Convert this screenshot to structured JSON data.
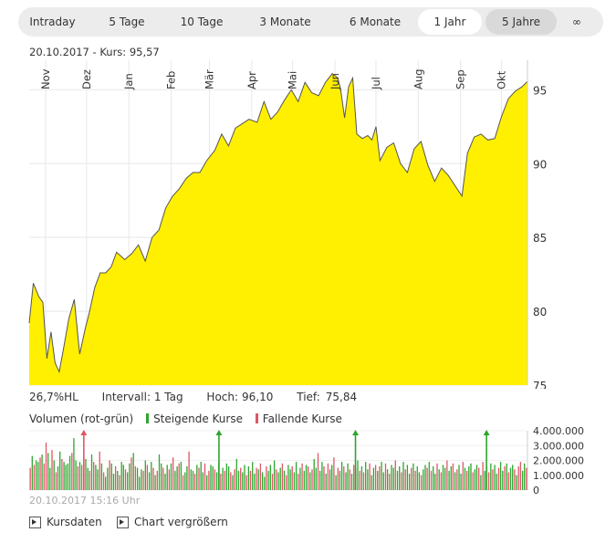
{
  "tabs": [
    {
      "label": "Intraday",
      "state": "normal"
    },
    {
      "label": "5 Tage",
      "state": "normal"
    },
    {
      "label": "10 Tage",
      "state": "normal"
    },
    {
      "label": "3 Monate",
      "state": "normal"
    },
    {
      "label": "6 Monate",
      "state": "normal"
    },
    {
      "label": "1 Jahr",
      "state": "selected"
    },
    {
      "label": "5 Jahre",
      "state": "hover"
    },
    {
      "label": "∞",
      "state": "normal"
    }
  ],
  "header": {
    "date": "20.10.2017",
    "kurs": "- Kurs: 95,57"
  },
  "stats": {
    "hl": "26,7%HL",
    "intervall": "Intervall: 1 Tag",
    "hoch_label": "Hoch:",
    "hoch_value": "96,10",
    "tief_label": "Tief:",
    "tief_value": "75,84"
  },
  "volume_legend": {
    "title": "Volumen (rot-grün)",
    "rising": "Steigende Kurse",
    "falling": "Fallende Kurse"
  },
  "timestamp": "20.10.2017 15:16 Uhr",
  "footer": {
    "kursdaten": "Kursdaten",
    "chart": "Chart vergrößern"
  },
  "colors": {
    "area_fill": "#ffef00",
    "line": "#555555",
    "rising": "#2ea52e",
    "falling": "#e05565",
    "grid": "#e8e8e8"
  },
  "chart_data": [
    {
      "type": "area",
      "x_axis_type": "date",
      "x_range": [
        "2016-10-20",
        "2017-10-20"
      ],
      "ylim": [
        75,
        97
      ],
      "y_ticks": [
        75,
        80,
        85,
        90,
        95
      ],
      "x_tick_labels": [
        "Nov",
        "Dez",
        "Jan",
        "Feb",
        "Mär",
        "Apr",
        "Mai",
        "Jun",
        "Jul",
        "Aug",
        "Sep",
        "Okt"
      ],
      "x_tick_dates": [
        "2016-11-01",
        "2016-12-01",
        "2017-01-01",
        "2017-02-01",
        "2017-03-01",
        "2017-04-01",
        "2017-05-01",
        "2017-06-01",
        "2017-07-01",
        "2017-08-01",
        "2017-09-01",
        "2017-10-01"
      ],
      "grid": true,
      "x": [
        "2016-10-20",
        "2016-10-23",
        "2016-10-27",
        "2016-10-30",
        "2016-11-02",
        "2016-11-05",
        "2016-11-08",
        "2016-11-11",
        "2016-11-14",
        "2016-11-18",
        "2016-11-22",
        "2016-11-26",
        "2016-11-30",
        "2016-12-03",
        "2016-12-07",
        "2016-12-11",
        "2016-12-15",
        "2016-12-19",
        "2016-12-23",
        "2016-12-29",
        "2017-01-03",
        "2017-01-08",
        "2017-01-13",
        "2017-01-18",
        "2017-01-23",
        "2017-01-28",
        "2017-02-02",
        "2017-02-07",
        "2017-02-12",
        "2017-02-17",
        "2017-02-22",
        "2017-02-27",
        "2017-03-05",
        "2017-03-10",
        "2017-03-15",
        "2017-03-20",
        "2017-03-25",
        "2017-03-30",
        "2017-04-05",
        "2017-04-10",
        "2017-04-15",
        "2017-04-20",
        "2017-04-25",
        "2017-04-30",
        "2017-05-05",
        "2017-05-10",
        "2017-05-15",
        "2017-05-20",
        "2017-05-25",
        "2017-05-30",
        "2017-06-03",
        "2017-06-05",
        "2017-06-08",
        "2017-06-11",
        "2017-06-14",
        "2017-06-17",
        "2017-06-21",
        "2017-06-25",
        "2017-06-28",
        "2017-07-01",
        "2017-07-04",
        "2017-07-09",
        "2017-07-14",
        "2017-07-19",
        "2017-07-24",
        "2017-07-29",
        "2017-08-03",
        "2017-08-08",
        "2017-08-13",
        "2017-08-18",
        "2017-08-23",
        "2017-08-28",
        "2017-09-02",
        "2017-09-06",
        "2017-09-11",
        "2017-09-16",
        "2017-09-21",
        "2017-09-26",
        "2017-10-01",
        "2017-10-06",
        "2017-10-11",
        "2017-10-16",
        "2017-10-20"
      ],
      "y": [
        79.2,
        81.9,
        81.0,
        80.6,
        76.8,
        78.6,
        76.5,
        75.9,
        77.4,
        79.5,
        80.8,
        77.1,
        78.8,
        79.9,
        81.6,
        82.6,
        82.6,
        83.0,
        84.0,
        83.5,
        83.9,
        84.5,
        83.4,
        85.0,
        85.5,
        87.0,
        87.8,
        88.3,
        89.0,
        89.4,
        89.4,
        90.2,
        90.9,
        92.0,
        91.2,
        92.4,
        92.7,
        93.0,
        92.8,
        94.2,
        93.0,
        93.5,
        94.3,
        95.0,
        94.2,
        95.5,
        94.8,
        94.6,
        95.5,
        96.1,
        95.8,
        95.1,
        93.1,
        95.2,
        95.8,
        92.0,
        91.7,
        91.9,
        91.6,
        92.5,
        90.2,
        91.1,
        91.4,
        90.0,
        89.4,
        91.0,
        91.5,
        89.9,
        88.8,
        89.7,
        89.2,
        88.5,
        87.8,
        90.7,
        91.8,
        92.0,
        91.6,
        91.7,
        93.2,
        94.4,
        94.9,
        95.2,
        95.57
      ]
    },
    {
      "type": "bar",
      "x_axis_type": "date",
      "ylim": [
        0,
        4000000
      ],
      "y_ticks": [
        0,
        1000000,
        2000000,
        3000000,
        4000000
      ],
      "y_tick_labels": [
        "0",
        "1.000.000",
        "2.000.000",
        "3.000.000",
        "4.000.000"
      ],
      "series": [
        {
          "name": "Steigende Kurse",
          "color": "#2ea52e"
        },
        {
          "name": "Fallende Kurse",
          "color": "#e05565"
        }
      ],
      "spikes_offscale": [
        {
          "x": "2016-11-29",
          "direction": "Fallende Kurse"
        },
        {
          "x": "2017-03-08",
          "direction": "Steigende Kurse"
        },
        {
          "x": "2017-06-16",
          "direction": "Steigende Kurse"
        },
        {
          "x": "2017-09-20",
          "direction": "Steigende Kurse"
        }
      ],
      "values": [
        1500000,
        2300000,
        1700000,
        2000000,
        1900000,
        2200000,
        2400000,
        1800000,
        3200000,
        2500000,
        1500000,
        2700000,
        2000000,
        1200000,
        1600000,
        2600000,
        2100000,
        1900000,
        1700000,
        1800000,
        2300000,
        2500000,
        3500000,
        2000000,
        1600000,
        1900000,
        1700000,
        2200000,
        2100000,
        1500000,
        1300000,
        2400000,
        1900000,
        1700000,
        1400000,
        2600000,
        1800000,
        1200000,
        900000,
        1500000,
        2000000,
        1800000,
        1100000,
        1600000,
        1300000,
        1000000,
        1900000,
        1700000,
        1400000,
        1200000,
        1800000,
        2200000,
        2500000,
        1600000,
        1500000,
        900000,
        1400000,
        1300000,
        2000000,
        1700000,
        1200000,
        1900000,
        1500000,
        1000000,
        1300000,
        2400000,
        1800000,
        1500000,
        1100000,
        1700000,
        1400000,
        1800000,
        2200000,
        1300000,
        1600000,
        1800000,
        1900000,
        1000000,
        1200000,
        1600000,
        2600000,
        1400000,
        1300000,
        1100000,
        1700000,
        1500000,
        1900000,
        1200000,
        1800000,
        1000000,
        1300000,
        1700000,
        1600000,
        1400000,
        1200000,
        1900000,
        1100000,
        1500000,
        1300000,
        1800000,
        1600000,
        1200000,
        1000000,
        1400000,
        2100000,
        1300000,
        1500000,
        1200000,
        1700000,
        1000000,
        1600000,
        1300000,
        1900000,
        1100000,
        1500000,
        1400000,
        1800000,
        1200000,
        900000,
        1600000,
        1300000,
        1700000,
        1100000,
        2000000,
        1400000,
        1200000,
        1500000,
        1800000,
        1300000,
        1000000,
        1700000,
        1400000,
        1600000,
        1200000,
        1900000,
        1100000,
        1500000,
        1800000,
        1300000,
        1700000,
        1600000,
        1200000,
        1400000,
        2100000,
        1500000,
        2500000,
        1300000,
        1900000,
        1600000,
        1100000,
        1800000,
        1400000,
        1700000,
        2200000,
        1000000,
        1500000,
        1300000,
        1900000,
        1600000,
        1200000,
        1800000,
        1400000,
        1100000,
        1700000,
        1500000,
        2000000,
        1300000,
        1600000,
        1200000,
        1900000,
        1400000,
        1800000,
        1000000,
        1500000,
        1700000,
        1300000,
        1600000,
        1900000,
        1200000,
        1800000,
        1400000,
        1100000,
        1700000,
        1500000,
        2000000,
        1300000,
        1600000,
        1200000,
        1900000,
        1400000,
        1700000,
        1100000,
        1500000,
        1800000,
        1300000,
        1600000,
        1200000,
        1000000,
        1400000,
        1700000,
        1500000,
        1900000,
        1300000,
        1600000,
        1100000,
        1800000,
        1400000,
        1200000,
        1700000,
        1500000,
        2000000,
        1300000,
        1600000,
        1800000,
        1200000,
        1400000,
        1700000,
        1100000,
        1900000,
        1500000,
        1300000,
        1600000,
        1800000,
        1200000,
        1400000,
        1700000,
        1500000,
        1000000,
        1900000,
        1300000,
        1600000,
        1200000,
        1800000,
        1400000,
        1700000,
        1100000,
        1500000,
        1900000,
        1300000,
        1600000,
        1800000,
        1200000,
        1500000,
        1700000,
        1400000,
        1000000,
        1600000,
        1900000,
        1300000,
        1800000,
        1500000
      ],
      "directions": "FRFRRFRFFRRFRFRRFRRRRFRRFRFRRRFRFRRFRFRRFRRFRFRRFRRFRFRRRFRFRRFRFRRFRRFRFRRFRFRRFRRFRFRRFRFRRFRRFRFRRFRFRRFRRFRFRRFRFRRFRRFRFRRFRFRRFRRFRFRRFRFRRFRRFRFRRFRFRRFRRFRFRRFRFRRFRRFRFRRFRFRRFRRFRFRRFRFRRFRRFRFRRFRFRRFRRFRFRRFRFRRFRRFRFRRFRFRRFRR"
    }
  ]
}
